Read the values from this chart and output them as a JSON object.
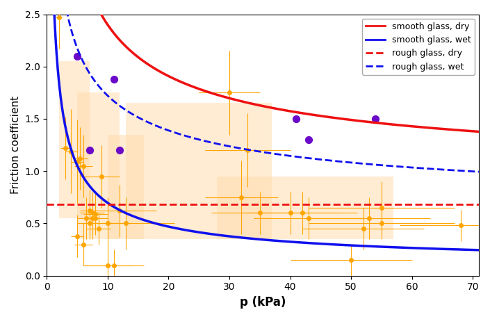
{
  "title": "",
  "xlabel": "p (kPa)",
  "ylabel": "Friction coefficient",
  "xlim": [
    0,
    71
  ],
  "ylim": [
    0,
    2.5
  ],
  "yticks": [
    0.0,
    0.5,
    1.0,
    1.5,
    2.0,
    2.5
  ],
  "xticks": [
    0,
    10,
    20,
    30,
    40,
    50,
    60,
    70
  ],
  "smooth_dry": {
    "a": 5.5,
    "n": -0.55,
    "c": 0.85
  },
  "smooth_wet": {
    "a": 2.8,
    "n": -0.65,
    "c": 0.07
  },
  "rough_dry_value": 0.68,
  "rough_wet": {
    "a": 3.5,
    "n": -0.45,
    "c": 0.48
  },
  "orange_scatter": {
    "x": [
      2,
      3,
      4,
      5,
      5,
      5.5,
      6,
      6,
      6.5,
      7,
      7,
      7.5,
      7.5,
      8,
      8,
      8.5,
      9,
      10,
      10,
      11,
      12,
      13,
      30,
      32,
      33,
      35,
      40,
      42,
      43,
      50,
      52,
      53,
      55,
      55,
      68
    ],
    "y": [
      2.47,
      1.22,
      1.19,
      1.09,
      0.38,
      1.12,
      1.05,
      0.3,
      0.55,
      0.62,
      0.5,
      0.55,
      0.6,
      0.59,
      0.55,
      0.45,
      0.95,
      0.5,
      0.1,
      0.1,
      0.62,
      0.5,
      1.75,
      0.75,
      1.2,
      0.6,
      0.6,
      0.6,
      0.55,
      0.15,
      0.45,
      0.55,
      0.65,
      0.5,
      0.48
    ],
    "xerr": [
      0.5,
      0.8,
      1,
      1,
      1,
      1.2,
      1.5,
      1.5,
      1.5,
      1.5,
      1.5,
      2,
      2,
      2,
      2,
      2,
      3,
      4,
      4,
      5,
      6,
      8,
      5,
      6,
      7,
      8,
      8,
      9,
      9,
      10,
      10,
      10,
      12,
      12,
      10
    ],
    "yerr": [
      0.3,
      0.3,
      0.4,
      0.4,
      0.2,
      0.3,
      0.3,
      0.2,
      0.2,
      0.2,
      0.15,
      0.2,
      0.2,
      0.2,
      0.15,
      0.15,
      0.3,
      0.25,
      0.15,
      0.15,
      0.25,
      0.25,
      0.4,
      0.35,
      0.35,
      0.2,
      0.2,
      0.2,
      0.2,
      0.15,
      0.2,
      0.2,
      0.25,
      0.15,
      0.15
    ]
  },
  "orange_shaded_bands": [
    {
      "x_lo": 2,
      "x_hi": 7,
      "y_lo": 0.55,
      "y_hi": 2.05
    },
    {
      "x_lo": 5,
      "x_hi": 12,
      "y_lo": 0.35,
      "y_hi": 1.75
    },
    {
      "x_lo": 10,
      "x_hi": 16,
      "y_lo": 0.35,
      "y_hi": 1.35
    },
    {
      "x_lo": 13,
      "x_hi": 37,
      "y_lo": 0.35,
      "y_hi": 1.65
    },
    {
      "x_lo": 28,
      "x_hi": 57,
      "y_lo": 0.35,
      "y_hi": 0.95
    }
  ],
  "purple_scatter": {
    "x": [
      5,
      7,
      11,
      12,
      41,
      43,
      54
    ],
    "y": [
      2.1,
      1.2,
      1.88,
      1.2,
      1.5,
      1.3,
      1.5
    ]
  },
  "colors": {
    "orange_scatter": "#FFA500",
    "orange_shaded": "#FFDDB0",
    "purple_scatter": "#6B0AC9",
    "smooth_dry": "#EE1111",
    "smooth_wet": "#1111EE",
    "rough_dry": "#EE1111",
    "rough_wet": "#1111EE"
  },
  "legend_entries": [
    {
      "label": "smooth glass, dry",
      "color": "#EE1111",
      "linestyle": "solid"
    },
    {
      "label": "smooth glass, wet",
      "color": "#1111EE",
      "linestyle": "solid"
    },
    {
      "label": "rough glass, dry",
      "color": "#EE1111",
      "linestyle": "dashed"
    },
    {
      "label": "rough glass, wet",
      "color": "#1111EE",
      "linestyle": "dashed"
    }
  ]
}
